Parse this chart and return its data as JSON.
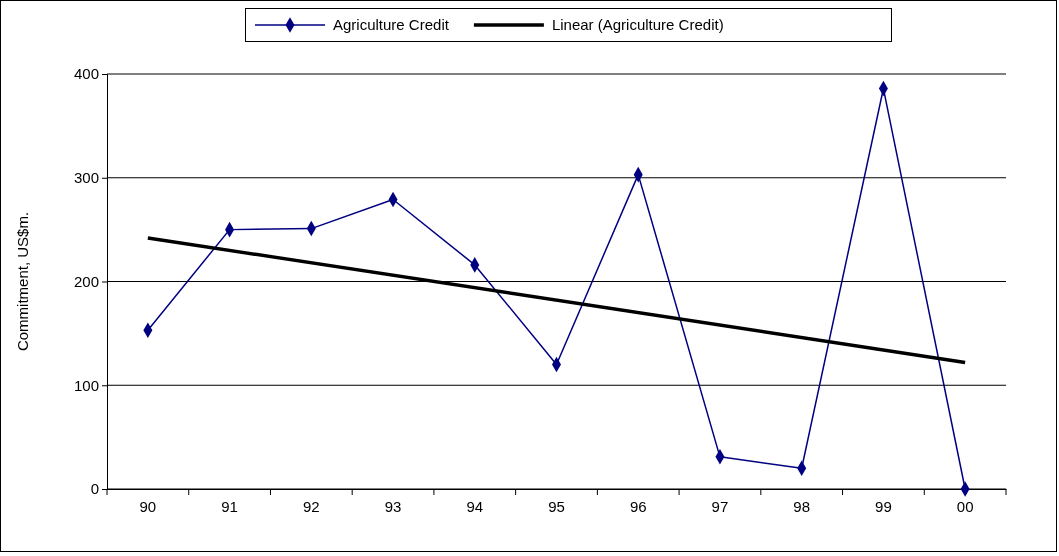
{
  "chart_data": {
    "type": "line",
    "ylabel": "Commitment, US$m.",
    "categories": [
      "90",
      "91",
      "92",
      "93",
      "94",
      "95",
      "96",
      "97",
      "98",
      "99",
      "00"
    ],
    "series": [
      {
        "name": "Agriculture Credit",
        "color": "#000080",
        "marker": "diamond",
        "values": [
          153,
          250,
          251,
          279,
          216,
          120,
          303,
          31,
          20,
          386,
          0
        ]
      },
      {
        "name": "Linear (Agriculture Credit)",
        "color": "#000000",
        "marker": "none",
        "x": [
          "90",
          "00"
        ],
        "values": [
          242,
          122
        ]
      }
    ],
    "ylim": [
      0,
      400
    ],
    "yticks": [
      0,
      100,
      200,
      300,
      400
    ],
    "grid": "y",
    "legend": "top"
  }
}
